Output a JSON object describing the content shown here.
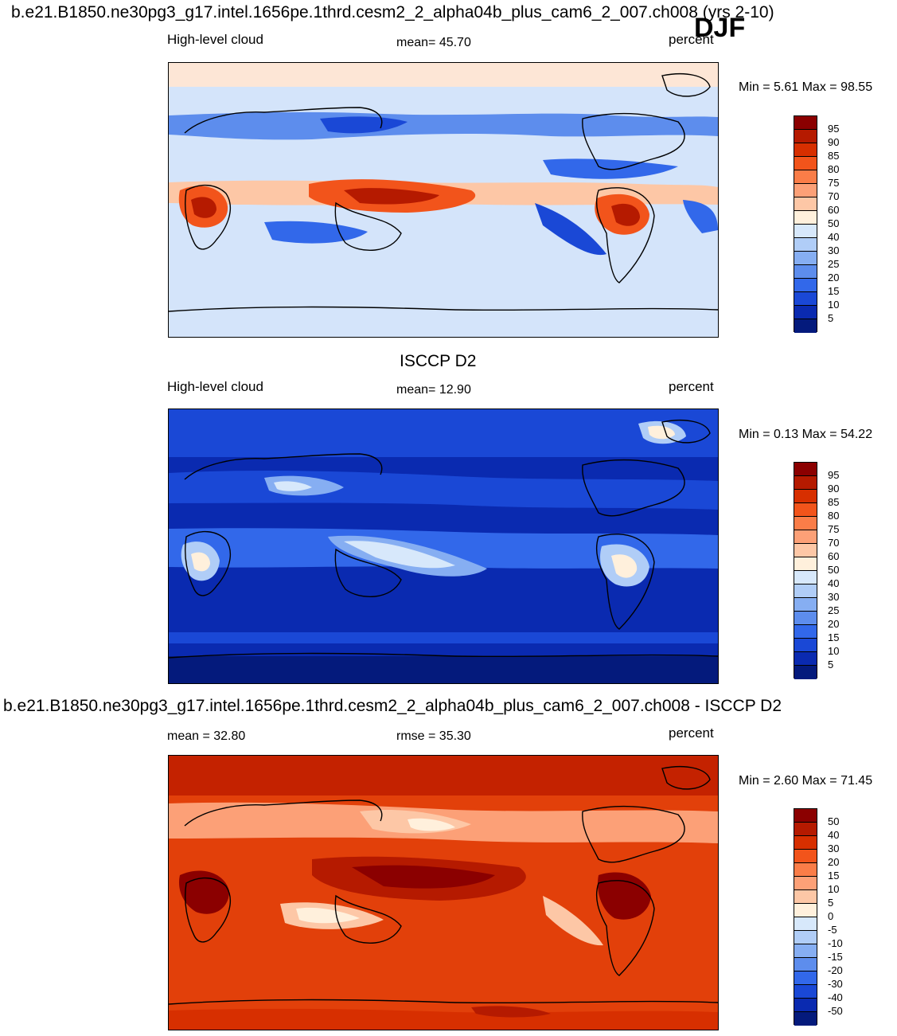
{
  "header": {
    "top_title": "b.e21.B1850.ne30pg3_g17.intel.1656pe.1thrd.cesm2_2_alpha04b_plus_cam6_2_007.ch008 (yrs 2-10)",
    "season": "DJF",
    "middle_title": "ISCCP D2",
    "bottom_title": "b.e21.B1850.ne30pg3_g17.intel.1656pe.1thrd.cesm2_2_alpha04b_plus_cam6_2_007.ch008 - ISCCP D2"
  },
  "panels": [
    {
      "left_label": "High-level cloud",
      "center_label": "mean=  45.70",
      "right_label": "percent",
      "minmax": "Min =   5.61 Max =  98.55",
      "colorbar": {
        "labels": [
          "95",
          "90",
          "85",
          "80",
          "75",
          "70",
          "60",
          "50",
          "40",
          "30",
          "25",
          "20",
          "15",
          "10",
          "5"
        ],
        "colors": [
          "#8b0000",
          "#b51a00",
          "#d72f00",
          "#f2541b",
          "#fa7d48",
          "#fca077",
          "#fdc7a6",
          "#fff0dc",
          "#d7e8fb",
          "#b0cdf7",
          "#86aef2",
          "#5d8ded",
          "#3268ea",
          "#1a48d6",
          "#0a2ab0",
          "#041a7c"
        ]
      }
    },
    {
      "left_label": "High-level cloud",
      "center_label": "mean=  12.90",
      "right_label": "percent",
      "minmax": "Min =   0.13 Max =  54.22",
      "colorbar": {
        "labels": [
          "95",
          "90",
          "85",
          "80",
          "75",
          "70",
          "60",
          "50",
          "40",
          "30",
          "25",
          "20",
          "15",
          "10",
          "5"
        ],
        "colors": [
          "#8b0000",
          "#b51a00",
          "#d72f00",
          "#f2541b",
          "#fa7d48",
          "#fca077",
          "#fdc7a6",
          "#fff0dc",
          "#d7e8fb",
          "#b0cdf7",
          "#86aef2",
          "#5d8ded",
          "#3268ea",
          "#1a48d6",
          "#0a2ab0",
          "#041a7c"
        ]
      }
    },
    {
      "left_label": "mean =  32.80",
      "center_label": "rmse =  35.30",
      "right_label": "percent",
      "minmax": "Min =   2.60 Max =  71.45",
      "colorbar": {
        "labels": [
          "50",
          "40",
          "30",
          "20",
          "15",
          "10",
          "5",
          "0",
          "-5",
          "-10",
          "-15",
          "-20",
          "-30",
          "-40",
          "-50"
        ],
        "colors": [
          "#8b0000",
          "#b51a00",
          "#d72f00",
          "#f2541b",
          "#fa7d48",
          "#fca077",
          "#fdc7a6",
          "#fff0dc",
          "#d7e8fb",
          "#b0cdf7",
          "#86aef2",
          "#5d8ded",
          "#3268ea",
          "#1a48d6",
          "#0a2ab0",
          "#041a7c"
        ]
      }
    }
  ]
}
